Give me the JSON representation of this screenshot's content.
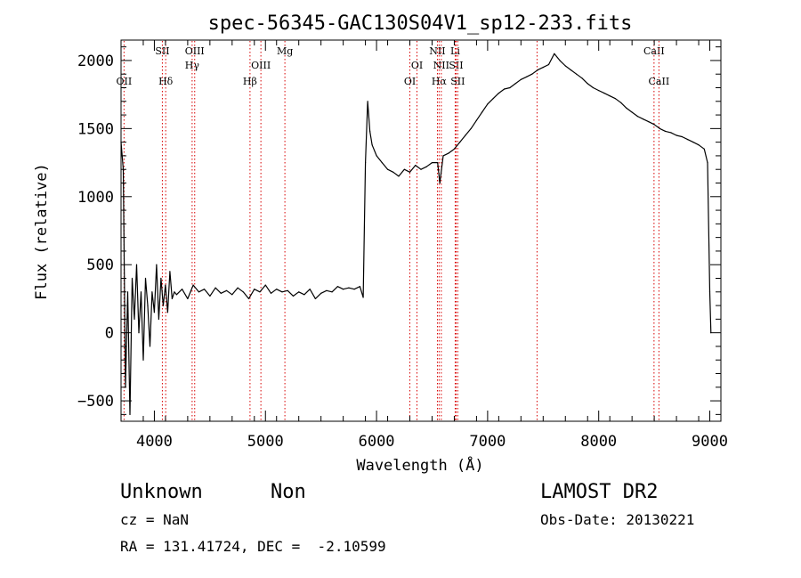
{
  "chart_data": {
    "type": "line",
    "title": "spec-56345-GAC130S04V1_sp12-233.fits",
    "xlabel": "Wavelength (Å)",
    "ylabel": "Flux (relative)",
    "xlim": [
      3700,
      9100
    ],
    "ylim": [
      -650,
      2150
    ],
    "x_ticks": [
      4000,
      5000,
      6000,
      7000,
      8000,
      9000
    ],
    "y_ticks": [
      -500,
      0,
      500,
      1000,
      1500,
      2000
    ],
    "grid": false,
    "series": [
      {
        "color": "#000000",
        "x": [
          3700,
          3720,
          3740,
          3760,
          3780,
          3800,
          3820,
          3840,
          3860,
          3880,
          3900,
          3920,
          3940,
          3960,
          3980,
          4000,
          4020,
          4040,
          4060,
          4080,
          4100,
          4120,
          4140,
          4160,
          4180,
          4200,
          4250,
          4300,
          4350,
          4400,
          4450,
          4500,
          4550,
          4600,
          4650,
          4700,
          4750,
          4800,
          4850,
          4900,
          4950,
          5000,
          5050,
          5100,
          5150,
          5200,
          5250,
          5300,
          5350,
          5400,
          5450,
          5500,
          5550,
          5600,
          5650,
          5700,
          5750,
          5800,
          5850,
          5880,
          5900,
          5920,
          5940,
          5960,
          6000,
          6050,
          6100,
          6150,
          6200,
          6250,
          6300,
          6350,
          6400,
          6450,
          6500,
          6550,
          6570,
          6600,
          6650,
          6700,
          6750,
          6800,
          6850,
          6900,
          6950,
          7000,
          7050,
          7100,
          7150,
          7200,
          7250,
          7300,
          7350,
          7400,
          7450,
          7500,
          7550,
          7600,
          7650,
          7700,
          7750,
          7800,
          7850,
          7900,
          7950,
          8000,
          8050,
          8100,
          8150,
          8200,
          8250,
          8300,
          8350,
          8400,
          8450,
          8500,
          8550,
          8600,
          8650,
          8700,
          8750,
          8800,
          8850,
          8900,
          8950,
          8980,
          9000,
          9010
        ],
        "y": [
          1400,
          1200,
          -400,
          300,
          -600,
          400,
          100,
          500,
          0,
          300,
          -200,
          400,
          200,
          -100,
          300,
          150,
          500,
          100,
          400,
          200,
          350,
          150,
          450,
          250,
          300,
          280,
          320,
          250,
          350,
          300,
          320,
          270,
          330,
          290,
          310,
          280,
          330,
          300,
          250,
          320,
          300,
          350,
          290,
          320,
          300,
          310,
          270,
          300,
          280,
          320,
          250,
          290,
          310,
          300,
          340,
          320,
          330,
          320,
          340,
          260,
          1250,
          1700,
          1480,
          1380,
          1300,
          1250,
          1200,
          1180,
          1150,
          1200,
          1180,
          1230,
          1200,
          1220,
          1250,
          1250,
          1100,
          1300,
          1320,
          1350,
          1400,
          1450,
          1500,
          1560,
          1620,
          1680,
          1720,
          1760,
          1790,
          1800,
          1830,
          1860,
          1880,
          1900,
          1930,
          1950,
          1970,
          2050,
          2000,
          1960,
          1930,
          1900,
          1870,
          1830,
          1800,
          1780,
          1760,
          1740,
          1720,
          1690,
          1650,
          1620,
          1590,
          1570,
          1550,
          1530,
          1500,
          1480,
          1470,
          1450,
          1440,
          1420,
          1400,
          1380,
          1350,
          1250,
          300,
          0
        ]
      }
    ],
    "lines": [
      {
        "wavelength": 3727,
        "label": "OII",
        "row": 3
      },
      {
        "wavelength": 4072,
        "label": "SII",
        "row": 1
      },
      {
        "wavelength": 4102,
        "label": "Hδ",
        "row": 3
      },
      {
        "wavelength": 4340,
        "label": "Hγ",
        "row": 2
      },
      {
        "wavelength": 4363,
        "label": "OIII",
        "row": 1
      },
      {
        "wavelength": 4861,
        "label": "Hβ",
        "row": 3
      },
      {
        "wavelength": 4959,
        "label": "OIII",
        "row": 2
      },
      {
        "wavelength": 5175,
        "label": "Mg",
        "row": 1
      },
      {
        "wavelength": 6300,
        "label": "OI",
        "row": 3
      },
      {
        "wavelength": 6364,
        "label": "OI",
        "row": 2
      },
      {
        "wavelength": 6548,
        "label": "NII",
        "row": 1
      },
      {
        "wavelength": 6563,
        "label": "Hα",
        "row": 3
      },
      {
        "wavelength": 6583,
        "label": "NII",
        "row": 2
      },
      {
        "wavelength": 6708,
        "label": "Li",
        "row": 1
      },
      {
        "wavelength": 6716,
        "label": "SII",
        "row": 2
      },
      {
        "wavelength": 6731,
        "label": "SII",
        "row": 3
      },
      {
        "wavelength": 7445,
        "label": "",
        "row": 0
      },
      {
        "wavelength": 8498,
        "label": "CaII",
        "row": 1
      },
      {
        "wavelength": 8542,
        "label": "CaII",
        "row": 3
      }
    ],
    "line_color": "#d80000"
  },
  "footer": {
    "class_left": "Unknown",
    "class_right": "Non",
    "cz": "cz = NaN",
    "coords": "RA = 131.41724, DEC =  -2.10599",
    "survey": "LAMOST DR2",
    "obs_date": "Obs-Date: 20130221"
  }
}
